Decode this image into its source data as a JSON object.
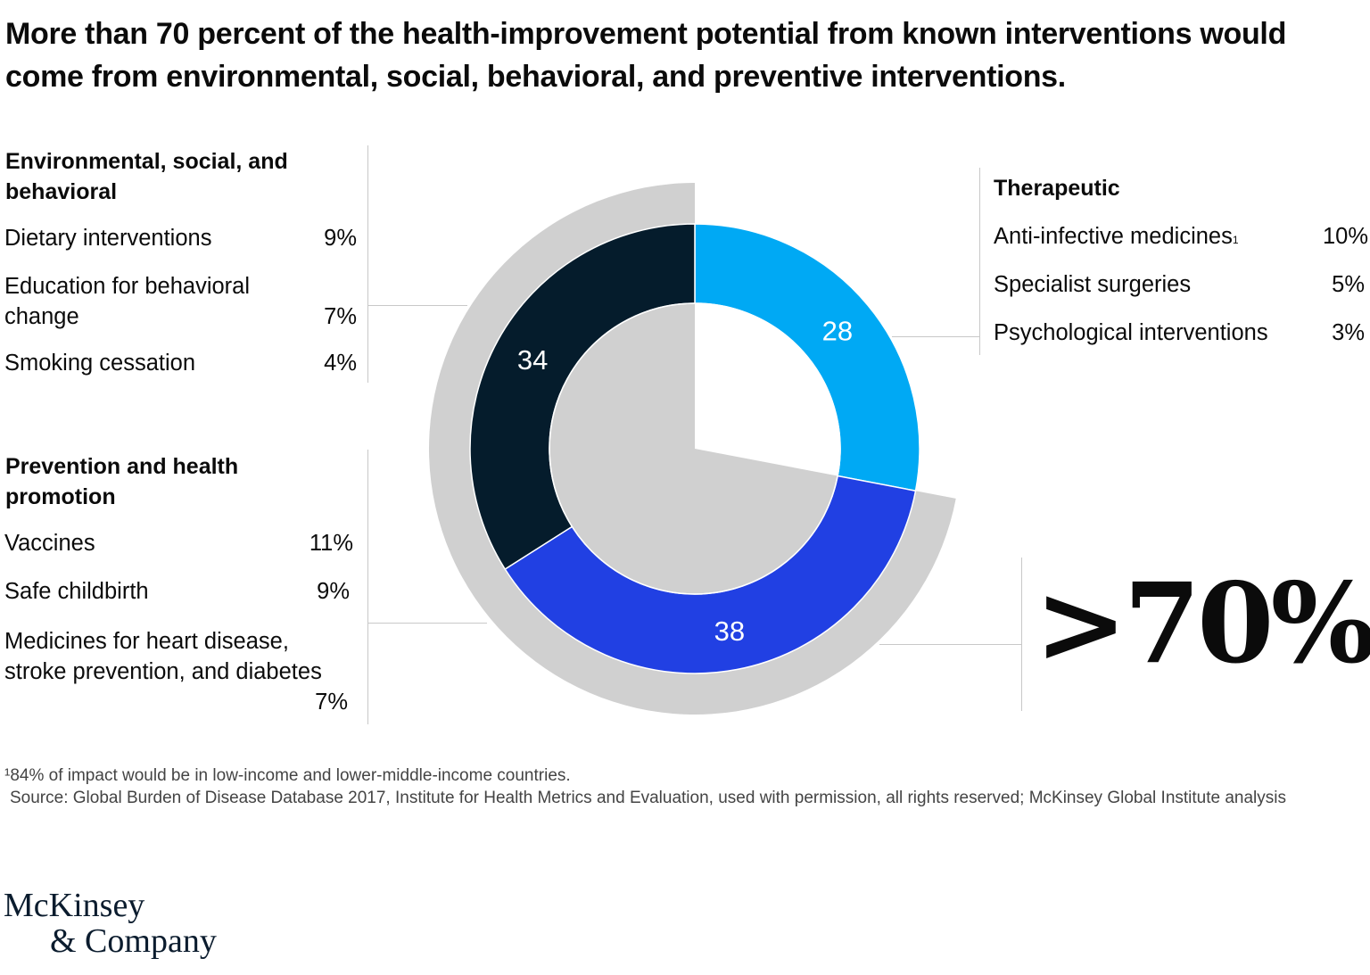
{
  "title": "More than 70 percent of the health-improvement potential from known interventions would come from environmental, social, behavioral, and preventive interventions.",
  "groups": {
    "env": {
      "heading": "Environmental, social, and behavioral",
      "items": [
        {
          "label": "Dietary interventions",
          "value": "9%"
        },
        {
          "label": "Education for behavioral change",
          "value": "7%"
        },
        {
          "label": "Smoking cessation",
          "value": "4%"
        }
      ]
    },
    "prev": {
      "heading": "Prevention and health promotion",
      "items": [
        {
          "label": "Vaccines",
          "value": "11%"
        },
        {
          "label": "Safe childbirth",
          "value": "9%"
        },
        {
          "label": "Medicines for heart disease, stroke prevention, and diabetes",
          "value": "7%"
        }
      ]
    },
    "ther": {
      "heading": "Therapeutic",
      "items": [
        {
          "label": "Anti-infective medicines",
          "sup": "1",
          "value": "10%"
        },
        {
          "label": "Specialist surgeries",
          "value": "5%"
        },
        {
          "label": "Psychological interventions",
          "value": "3%"
        }
      ]
    }
  },
  "chart_data": {
    "type": "pie",
    "slices": [
      {
        "name": "Therapeutic",
        "value": 28,
        "label": "28",
        "color": "#00a9f4"
      },
      {
        "name": "Prevention and health promotion",
        "value": 38,
        "label": "38",
        "color": "#2140e3"
      },
      {
        "name": "Environmental, social, and behavioral",
        "value": 34,
        "label": "34",
        "color": "#051c2c"
      }
    ],
    "highlight": {
      "label": ">70%",
      "slices": [
        "Prevention and health promotion",
        "Environmental, social, and behavioral"
      ],
      "color": "#d0d0d0"
    }
  },
  "footnotes": {
    "note1": "¹84% of impact would be in low-income and lower-middle-income countries.",
    "source": "Source: Global Burden of Disease Database 2017, Institute for Health Metrics and Evaluation, used with permission, all rights reserved; McKinsey Global Institute analysis"
  },
  "logo": {
    "line1": "McKinsey",
    "line2": "& Company"
  }
}
